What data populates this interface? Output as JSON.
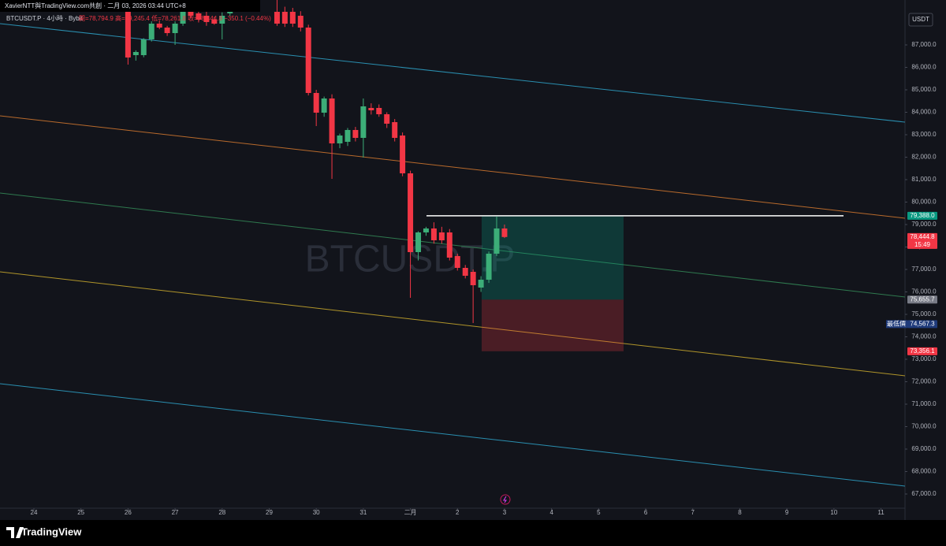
{
  "header": {
    "title": "XavierNTT與TradingView.com共創 · 二月 03, 2026 03:44 UTC+8",
    "symbol": "BTCUSDT.P · 4小時 · Bybit",
    "ohlc": "開=78,794.9 高=79,245.4 低=78,261.8 收=78,444.8 −350.1 (−0.44%)"
  },
  "chart_data": {
    "type": "candlestick",
    "watermark": "BTCUSDT.P",
    "currency": "USDT",
    "x": [
      26.0,
      26.167,
      26.333,
      26.5,
      26.667,
      26.833,
      27.0,
      27.167,
      27.333,
      27.5,
      27.667,
      27.833,
      28.0,
      28.167,
      29.167,
      29.333,
      29.5,
      29.667,
      29.833,
      30.0,
      30.167,
      30.333,
      30.5,
      30.667,
      30.833,
      31.0,
      31.167,
      31.333,
      31.5,
      31.667,
      31.833,
      32.0,
      32.167,
      32.333,
      32.5,
      32.667,
      32.833,
      33.0,
      33.167,
      33.333,
      33.5,
      33.667,
      33.833,
      34.0
    ],
    "open": [
      89100,
      86544,
      86544,
      87246,
      87947,
      87772,
      87526,
      87947,
      88474,
      88404,
      88298,
      88123,
      87947,
      88404,
      88474,
      88474,
      88474,
      88298,
      87772,
      84860,
      83982,
      84614,
      82614,
      82684,
      83211,
      82860,
      84193,
      84193,
      83912,
      83561,
      82965,
      81281,
      77772,
      78649,
      78825,
      78649,
      78649,
      77596,
      77070,
      76895,
      76193,
      76544,
      77702,
      78825
    ],
    "high": [
      89300,
      86760,
      87300,
      88050,
      88100,
      87850,
      88050,
      88600,
      88700,
      88550,
      88500,
      88250,
      88450,
      88650,
      89100,
      88700,
      88650,
      88500,
      87900,
      85000,
      84700,
      84800,
      83050,
      83300,
      83350,
      84614,
      84400,
      84350,
      84000,
      83700,
      83100,
      81400,
      78700,
      78900,
      79100,
      78900,
      78800,
      77700,
      77200,
      77000,
      76700,
      77800,
      79351,
      79000
    ],
    "low": [
      86123,
      86300,
      86450,
      87150,
      87700,
      87400,
      87000,
      87850,
      88200,
      88000,
      87850,
      87900,
      87246,
      88300,
      87850,
      87800,
      87800,
      87600,
      84750,
      83386,
      83800,
      81035,
      82400,
      82500,
      82700,
      81982,
      83900,
      83800,
      83300,
      82700,
      81150,
      75737,
      77400,
      78500,
      78150,
      78150,
      77400,
      76950,
      76600,
      74614,
      76000,
      76400,
      77600,
      78400
    ],
    "close": [
      86439,
      86684,
      87246,
      87947,
      87772,
      87526,
      87947,
      88474,
      88298,
      88123,
      88018,
      87947,
      88298,
      88579,
      87947,
      87947,
      87947,
      87772,
      84860,
      83982,
      84614,
      82614,
      82965,
      83211,
      82860,
      84263,
      84088,
      83912,
      83491,
      82860,
      81281,
      77772,
      78649,
      78825,
      78298,
      78298,
      77526,
      77070,
      76719,
      76298,
      76544,
      77702,
      78825,
      78444.8
    ],
    "up_color": "#3cae78",
    "down_color": "#f23645",
    "xlim": [
      23.28,
      42.51
    ],
    "ylim": [
      66368,
      89000
    ],
    "grid": false,
    "xticks": [
      24,
      25,
      26,
      27,
      28,
      29,
      30,
      31,
      {
        "value": 32,
        "label": "二月"
      },
      {
        "value": 33,
        "label": "2"
      },
      {
        "value": 34,
        "label": "3"
      },
      {
        "value": 35,
        "label": "4"
      },
      {
        "value": 36,
        "label": "5"
      },
      {
        "value": 37,
        "label": "6"
      },
      {
        "value": 38,
        "label": "7"
      },
      {
        "value": 39,
        "label": "8"
      },
      {
        "value": 40,
        "label": "9"
      },
      {
        "value": 41,
        "label": "10"
      },
      {
        "value": 42,
        "label": "11"
      }
    ],
    "yticks": [
      {
        "value": 67000,
        "label": "67,000.0"
      },
      {
        "value": 68000,
        "label": "68,000.0"
      },
      {
        "value": 69000,
        "label": "69,000.0"
      },
      {
        "value": 70000,
        "label": "70,000.0"
      },
      {
        "value": 71000,
        "label": "71,000.0"
      },
      {
        "value": 72000,
        "label": "72,000.0"
      },
      {
        "value": 73000,
        "label": "73,000.0"
      },
      {
        "value": 74000,
        "label": "74,000.0"
      },
      {
        "value": 75000,
        "label": "75,000.0"
      },
      {
        "value": 76000,
        "label": "76,000.0"
      },
      {
        "value": 77000,
        "label": "77,000.0"
      },
      {
        "value": 78000,
        "label": "78,000.0"
      },
      {
        "value": 79000,
        "label": "79,000.0"
      },
      {
        "value": 80000,
        "label": "80,000.0"
      },
      {
        "value": 81000,
        "label": "81,000.0"
      },
      {
        "value": 82000,
        "label": "82,000.0"
      },
      {
        "value": 83000,
        "label": "83,000.0"
      },
      {
        "value": 84000,
        "label": "84,000.0"
      },
      {
        "value": 85000,
        "label": "85,000.0"
      },
      {
        "value": 86000,
        "label": "86,000.0"
      },
      {
        "value": 87000,
        "label": "87,000.0"
      }
    ],
    "price_labels": [
      {
        "value": 79388.0,
        "label": "79,388.0",
        "color": "#089981"
      },
      {
        "value": 78444.8,
        "label": "78,444.8",
        "sub": "15:49",
        "color": "#f23645"
      },
      {
        "value": 75655.7,
        "label": "75,655.7",
        "color": "#787b86"
      },
      {
        "value": 74567.3,
        "label": "74,567.3",
        "tag": "最低價",
        "color": "#1e3a7a"
      },
      {
        "value": 73356.1,
        "label": "73,356.1",
        "color": "#f23645"
      }
    ]
  },
  "footer": {
    "brand": "TradingView"
  }
}
